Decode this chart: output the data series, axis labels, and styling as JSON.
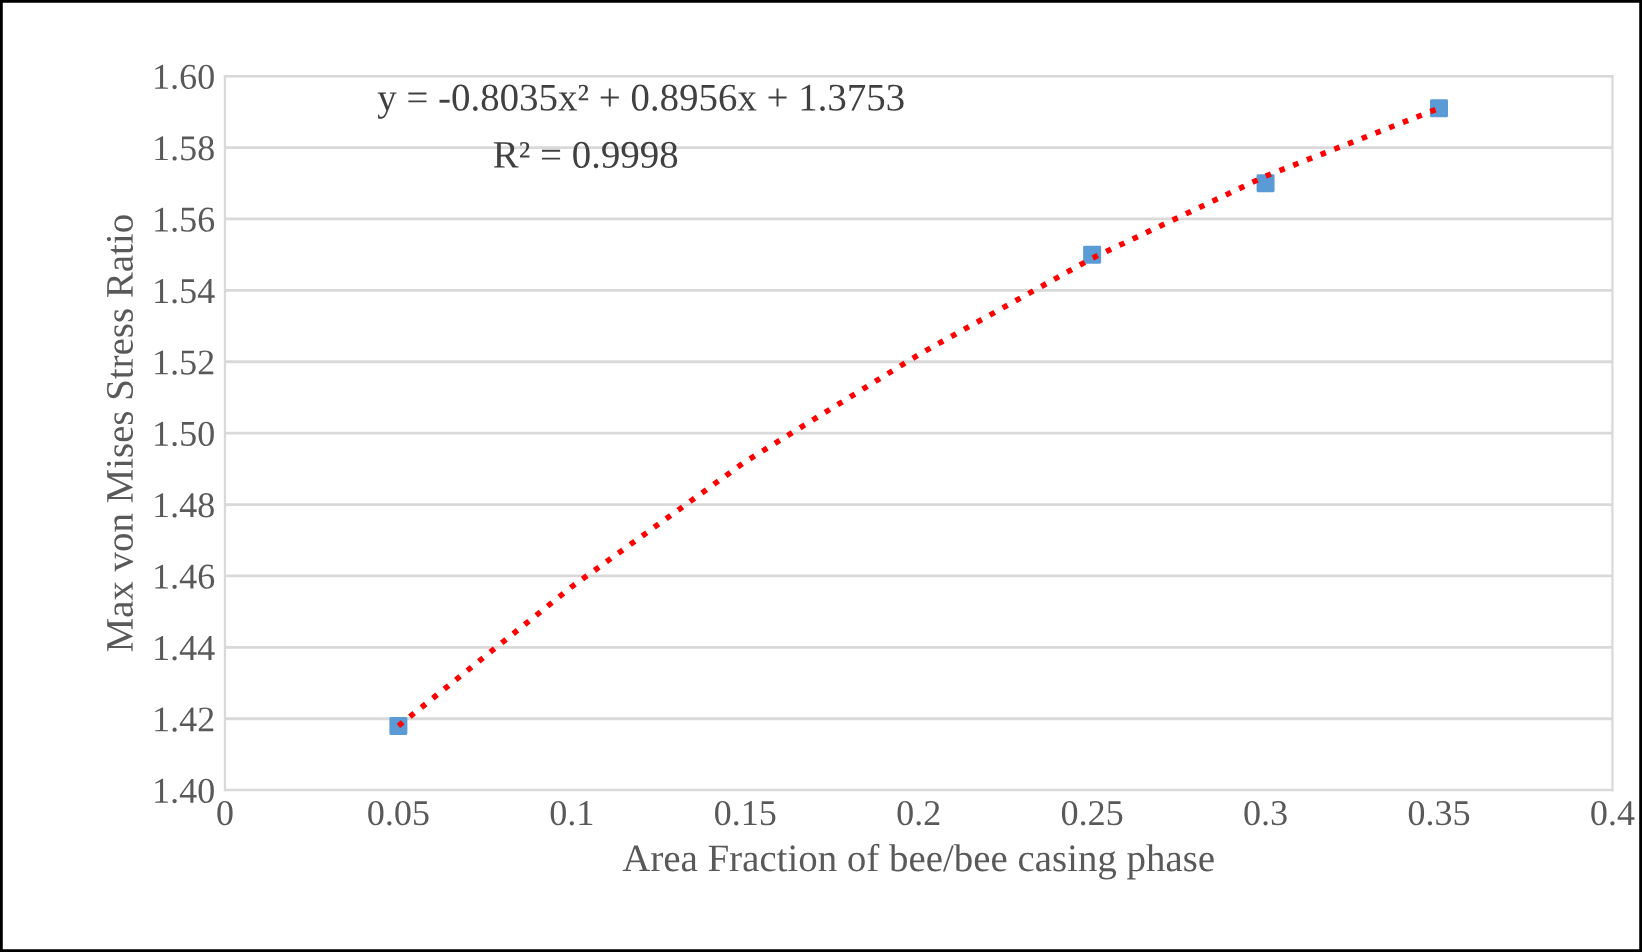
{
  "chart_data": {
    "type": "scatter",
    "xlabel": "Area Fraction of bee/bee casing phase",
    "ylabel": "Max von Mises Stress Ratio",
    "x": [
      0.05,
      0.25,
      0.3,
      0.35
    ],
    "series": [
      {
        "color": "#5b9bd5",
        "marker": "square",
        "values": [
          1.418,
          1.55,
          1.57,
          1.591
        ]
      },
      {
        "type": "line",
        "color": "#ff0000",
        "line_style": "dotted",
        "marker": "none",
        "x": [
          0.05,
          0.1,
          0.15,
          0.2,
          0.25,
          0.3,
          0.35
        ],
        "values": [
          1.418,
          1.457,
          1.492,
          1.522,
          1.549,
          1.572,
          1.591
        ]
      }
    ],
    "xlim": [
      0,
      0.4
    ],
    "xticks": [
      0,
      0.05,
      0.1,
      0.15,
      0.2,
      0.25,
      0.3,
      0.35,
      0.4
    ],
    "ylim": [
      1.4,
      1.6
    ],
    "yticks": [
      {
        "value": 1.4,
        "label": "1.40"
      },
      {
        "value": 1.42,
        "label": "1.42"
      },
      {
        "value": 1.44,
        "label": "1.44"
      },
      {
        "value": 1.46,
        "label": "1.46"
      },
      {
        "value": 1.48,
        "label": "1.48"
      },
      {
        "value": 1.5,
        "label": "1.50"
      },
      {
        "value": 1.52,
        "label": "1.52"
      },
      {
        "value": 1.54,
        "label": "1.54"
      },
      {
        "value": 1.56,
        "label": "1.56"
      },
      {
        "value": 1.58,
        "label": "1.58"
      },
      {
        "value": 1.6,
        "label": "1.60"
      }
    ],
    "grid": "y",
    "legend": false,
    "annotations": [
      "y = -0.8035x² + 0.8956x + 1.3753",
      "R² = 0.9998"
    ]
  }
}
